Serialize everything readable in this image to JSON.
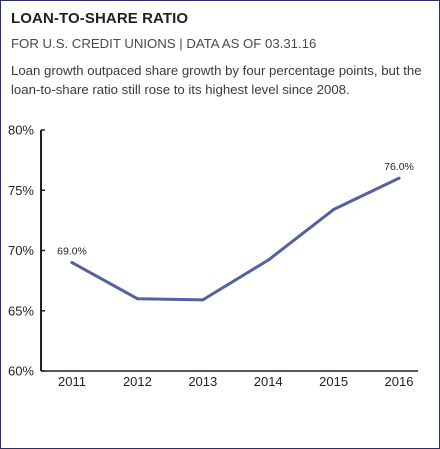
{
  "title": "LOAN-TO-SHARE RATIO",
  "subtitle": "FOR U.S. CREDIT UNIONS | DATA AS OF 03.31.16",
  "description": "Loan growth outpaced share growth by four percentage points, but the loan-to-share ratio still rose to its highest level since 2008.",
  "colors": {
    "line": "#5361a0",
    "frame": "#2b2f63",
    "axis": "#231f20"
  },
  "chart_data": {
    "type": "line",
    "title": "LOAN-TO-SHARE RATIO",
    "subtitle": "FOR U.S. CREDIT UNIONS | DATA AS OF 03.31.16",
    "xlabel": "",
    "ylabel": "",
    "categories": [
      "2011",
      "2012",
      "2013",
      "2014",
      "2015",
      "2016"
    ],
    "series": [
      {
        "values": [
          69.0,
          66.0,
          65.9,
          69.2,
          73.4,
          76.0
        ]
      }
    ],
    "ylim": [
      60,
      80
    ],
    "yticks": [
      60,
      65,
      70,
      75,
      80
    ],
    "ytick_labels": [
      "60%",
      "65%",
      "70%",
      "75%",
      "80%"
    ],
    "data_labels": [
      {
        "index": 0,
        "text": "69.0%"
      },
      {
        "index": 5,
        "text": "76.0%"
      }
    ],
    "grid": false,
    "legend": "none"
  }
}
